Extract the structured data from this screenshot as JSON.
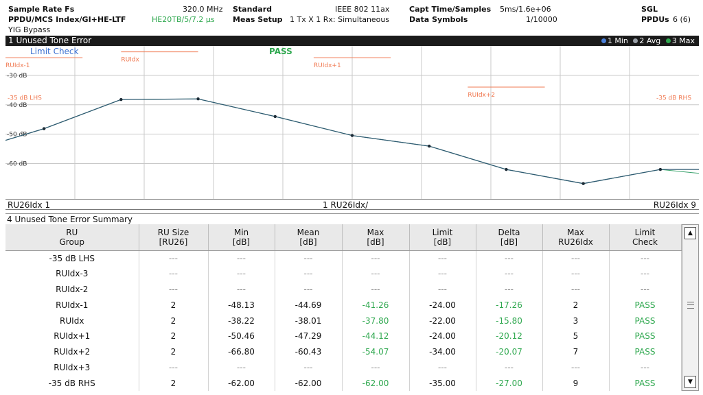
{
  "header": {
    "sample_rate_label": "Sample Rate Fs",
    "sample_rate_value": "320.0 MHz",
    "standard_label": "Standard",
    "standard_value": "IEEE 802 11ax",
    "capt_label": "Capt Time/Samples",
    "capt_value": "5ms/1.6e+06",
    "mode_value": "SGL",
    "ppdu_label": "PPDU/MCS Index/GI+HE-LTF",
    "ppdu_value": "HE20TB/5/7.2 µs",
    "meas_label": "Meas Setup",
    "meas_value": "1 Tx X 1 Rx: Simultaneous",
    "data_sym_label": "Data Symbols",
    "data_sym_value": "1/10000",
    "ppdus_label": "PPDUs",
    "ppdus_value": "6 (6)",
    "yig_label": "YIG Bypass"
  },
  "trace": {
    "title": "1 Unused Tone Error",
    "legend": [
      {
        "text": "1 Min",
        "color": "#4a7fd8"
      },
      {
        "text": "2 Avg",
        "color": "#9aa0a8"
      },
      {
        "text": "3 Max",
        "color": "#2fa84f"
      }
    ],
    "limit_check_label": "Limit Check",
    "limit_check_result": "PASS",
    "x_left": "RU26Idx 1",
    "x_center": "1 RU26Idx/",
    "x_right": "RU26Idx 9",
    "colors": {
      "grid": "#c8c8c8",
      "limit": "#f07850",
      "trace": "#2f5a72",
      "trace_alt": "#36a06a",
      "label": "#f07850"
    }
  },
  "chart_data": {
    "type": "line",
    "x": [
      1,
      2,
      3,
      4,
      5,
      6,
      7,
      8,
      9
    ],
    "series": [
      {
        "values": [
          -48.13,
          -38.22,
          -38.01,
          -44.0,
          -50.46,
          -54.07,
          -62.0,
          -66.8,
          -62.0
        ]
      }
    ],
    "y_ticks": [
      {
        "label": "-30 dB",
        "value": -30
      },
      {
        "label": "-40 dB",
        "value": -40
      },
      {
        "label": "-50 dB",
        "value": -50
      },
      {
        "label": "-60 dB",
        "value": -60
      }
    ],
    "ylim": [
      -72,
      -20
    ],
    "xlim": [
      0.5,
      9.5
    ],
    "limits": [
      {
        "label": "RUIdx-1",
        "value": -24.0,
        "x_from": 0.5,
        "x_to": 1.5
      },
      {
        "label": "RUIdx",
        "value": -22.0,
        "x_from": 2.0,
        "x_to": 3.0
      },
      {
        "label": "RUIdx+1",
        "value": -24.0,
        "x_from": 4.5,
        "x_to": 5.5
      },
      {
        "label": "RUIdx+2",
        "value": -34.0,
        "x_from": 6.5,
        "x_to": 7.5
      },
      {
        "label": "-35 dB LHS",
        "value": -35.0,
        "x_from": 0.5,
        "x_to": 0.5
      },
      {
        "label": "-35 dB RHS",
        "value": -35.0,
        "x_from": 9.5,
        "x_to": 9.5
      }
    ],
    "grid": true
  },
  "summary": {
    "title": "4 Unused Tone Error Summary",
    "columns": [
      [
        "RU",
        "Group"
      ],
      [
        "RU Size",
        "[RU26]"
      ],
      [
        "Min",
        "[dB]"
      ],
      [
        "Mean",
        "[dB]"
      ],
      [
        "Max",
        "[dB]"
      ],
      [
        "Limit",
        "[dB]"
      ],
      [
        "Delta",
        "[dB]"
      ],
      [
        "Max",
        "RU26Idx"
      ],
      [
        "Limit",
        "Check"
      ]
    ],
    "rows": [
      [
        "-35 dB LHS",
        "---",
        "---",
        "---",
        "---",
        "---",
        "---",
        "---",
        "---"
      ],
      [
        "RUIdx-3",
        "---",
        "---",
        "---",
        "---",
        "---",
        "---",
        "---",
        "---"
      ],
      [
        "RUIdx-2",
        "---",
        "---",
        "---",
        "---",
        "---",
        "---",
        "---",
        "---"
      ],
      [
        "RUIdx-1",
        "2",
        "-48.13",
        "-44.69",
        "-41.26",
        "-24.00",
        "-17.26",
        "2",
        "PASS"
      ],
      [
        "RUIdx",
        "2",
        "-38.22",
        "-38.01",
        "-37.80",
        "-22.00",
        "-15.80",
        "3",
        "PASS"
      ],
      [
        "RUIdx+1",
        "2",
        "-50.46",
        "-47.29",
        "-44.12",
        "-24.00",
        "-20.12",
        "5",
        "PASS"
      ],
      [
        "RUIdx+2",
        "2",
        "-66.80",
        "-60.43",
        "-54.07",
        "-34.00",
        "-20.07",
        "7",
        "PASS"
      ],
      [
        "RUIdx+3",
        "---",
        "---",
        "---",
        "---",
        "---",
        "---",
        "---",
        "---"
      ],
      [
        "-35 dB RHS",
        "2",
        "-62.00",
        "-62.00",
        "-62.00",
        "-35.00",
        "-27.00",
        "9",
        "PASS"
      ]
    ],
    "scroll_up_icon": "scroll-up-icon",
    "scroll_down_icon": "scroll-down-icon"
  }
}
